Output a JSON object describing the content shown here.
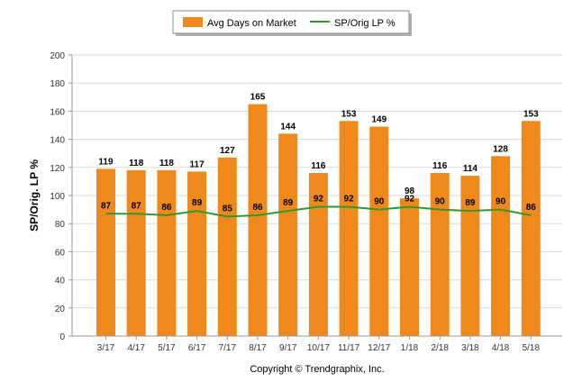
{
  "chart_data": {
    "type": "bar",
    "categories": [
      "3/17",
      "4/17",
      "5/17",
      "6/17",
      "7/17",
      "8/17",
      "9/17",
      "10/17",
      "11/17",
      "12/17",
      "1/18",
      "2/18",
      "3/18",
      "4/18",
      "5/18"
    ],
    "series": [
      {
        "name": "Avg Days on Market",
        "type": "bar",
        "color": "#F0891B",
        "values": [
          119,
          118,
          118,
          117,
          127,
          165,
          144,
          116,
          153,
          149,
          98,
          116,
          114,
          128,
          153
        ]
      },
      {
        "name": "SP/Orig LP %",
        "type": "line",
        "color": "#2E9A2E",
        "values": [
          87,
          87,
          86,
          89,
          85,
          86,
          89,
          92,
          92,
          90,
          92,
          90,
          89,
          90,
          86
        ]
      }
    ],
    "ylabel": "SP/Orig. LP %",
    "ylim": [
      0,
      200
    ],
    "yticks": [
      0,
      20,
      40,
      60,
      80,
      100,
      120,
      140,
      160,
      180,
      200
    ],
    "grid": true,
    "legend_position": "top-center"
  },
  "footer": {
    "copyright": "Copyright © Trendgraphix, Inc."
  }
}
